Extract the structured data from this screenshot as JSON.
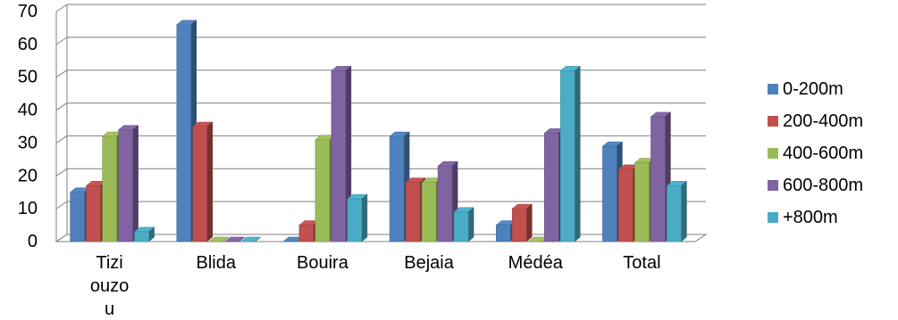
{
  "chart_data": {
    "type": "bar",
    "title": "",
    "xlabel": "",
    "ylabel": "",
    "categories": [
      "Tizi ouzou",
      "Blida",
      "Bouira",
      "Bejaia",
      "Médéa",
      "Total"
    ],
    "category_label_lines": [
      [
        "Tizi",
        "ouzo",
        "u"
      ],
      [
        "Blida"
      ],
      [
        "Bouira"
      ],
      [
        "Bejaia"
      ],
      [
        "Médéa"
      ],
      [
        "Total"
      ]
    ],
    "ylim": [
      0,
      70
    ],
    "yticks": [
      "0",
      "10",
      "20",
      "30",
      "40",
      "50",
      "60",
      "70"
    ],
    "grid": true,
    "legend_position": "right",
    "series": [
      {
        "name": "0-200m",
        "color": "#4F81BD",
        "values": [
          15,
          66,
          0,
          32,
          5,
          29
        ]
      },
      {
        "name": "200-400m",
        "color": "#C0504D",
        "values": [
          17,
          35,
          5,
          18,
          10,
          22
        ]
      },
      {
        "name": "400-600m",
        "color": "#9BBB59",
        "values": [
          32,
          0,
          31,
          18,
          0,
          24
        ]
      },
      {
        "name": "600-800m",
        "color": "#8064A2",
        "values": [
          34,
          0,
          52,
          23,
          33,
          38
        ]
      },
      {
        "name": "+800m",
        "color": "#4BACC6",
        "values": [
          3,
          0,
          13,
          9,
          52,
          17
        ]
      }
    ]
  }
}
